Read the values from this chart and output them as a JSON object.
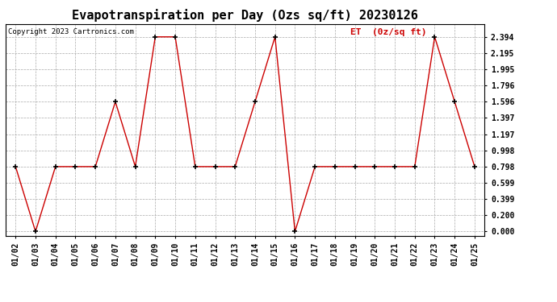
{
  "title": "Evapotranspiration per Day (Ozs sq/ft) 20230126",
  "copyright": "Copyright 2023 Cartronics.com",
  "legend_label": "ET  (0z/sq ft)",
  "dates": [
    "01/02",
    "01/03",
    "01/04",
    "01/05",
    "01/06",
    "01/07",
    "01/08",
    "01/09",
    "01/10",
    "01/11",
    "01/12",
    "01/13",
    "01/14",
    "01/15",
    "01/16",
    "01/17",
    "01/18",
    "01/19",
    "01/20",
    "01/21",
    "01/22",
    "01/23",
    "01/24",
    "01/25"
  ],
  "values": [
    0.798,
    0.0,
    0.798,
    0.798,
    0.798,
    1.596,
    0.798,
    2.394,
    2.394,
    0.798,
    0.798,
    0.798,
    1.596,
    2.394,
    0.0,
    0.798,
    0.798,
    0.798,
    0.798,
    0.798,
    0.798,
    2.394,
    1.596,
    0.798
  ],
  "line_color": "#cc0000",
  "marker_color": "#000000",
  "bg_color": "#ffffff",
  "grid_color": "#aaaaaa",
  "yticks": [
    0.0,
    0.2,
    0.399,
    0.599,
    0.798,
    0.998,
    1.197,
    1.397,
    1.596,
    1.796,
    1.995,
    2.195,
    2.394
  ],
  "ylim": [
    -0.05,
    2.55
  ],
  "title_fontsize": 11,
  "tick_fontsize": 7,
  "copyright_fontsize": 6.5,
  "legend_fontsize": 8,
  "figwidth": 6.9,
  "figheight": 3.75,
  "dpi": 100
}
